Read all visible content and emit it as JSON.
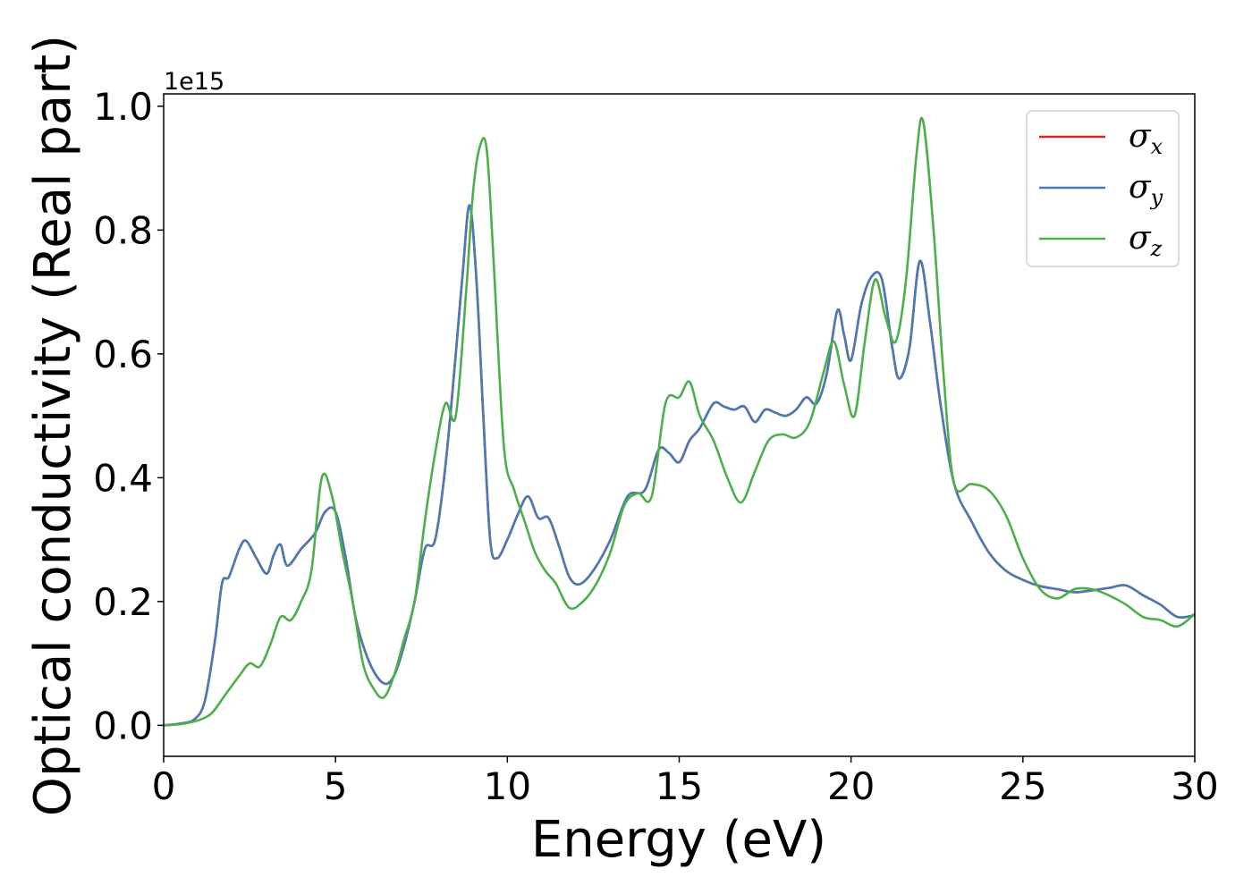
{
  "chart_data": {
    "type": "line",
    "title": "",
    "xlabel": "Energy (eV)",
    "ylabel": "Optical conductivity (Real part)",
    "y_offset_label": "1e15",
    "xlim": [
      0,
      30
    ],
    "ylim": [
      -0.05,
      1.02
    ],
    "xticks": [
      "0",
      "5",
      "10",
      "15",
      "20",
      "25",
      "30"
    ],
    "yticks": [
      "0.0",
      "0.2",
      "0.4",
      "0.6",
      "0.8",
      "1.0"
    ],
    "grid": false,
    "legend_position": "top-right",
    "series": [
      {
        "name": "σx",
        "symbol": "σ",
        "subscript": "x",
        "color": "#d62728",
        "x": [
          0,
          0.5,
          0.9,
          1.2,
          1.5,
          1.7,
          1.9,
          2.2,
          2.4,
          2.7,
          3.0,
          3.2,
          3.4,
          3.6,
          4.0,
          4.4,
          4.7,
          5.0,
          5.3,
          5.6,
          6.0,
          6.4,
          6.7,
          7.0,
          7.3,
          7.6,
          7.9,
          8.2,
          8.5,
          8.7,
          8.9,
          9.1,
          9.3,
          9.5,
          9.7,
          10.0,
          10.3,
          10.6,
          10.9,
          11.2,
          11.5,
          11.8,
          12.1,
          12.5,
          13.0,
          13.5,
          14.0,
          14.4,
          14.7,
          15.0,
          15.3,
          15.6,
          16.0,
          16.3,
          16.6,
          16.9,
          17.2,
          17.5,
          17.8,
          18.1,
          18.4,
          18.7,
          19.0,
          19.3,
          19.6,
          19.8,
          20.0,
          20.3,
          20.6,
          20.9,
          21.2,
          21.4,
          21.7,
          22.0,
          22.3,
          22.6,
          23.0,
          23.5,
          24.0,
          24.5,
          25.0,
          25.5,
          26.0,
          26.5,
          27.0,
          27.5,
          28.0,
          28.5,
          29.0,
          29.5,
          30.0
        ],
        "y": [
          0.0,
          0.003,
          0.01,
          0.04,
          0.14,
          0.23,
          0.24,
          0.285,
          0.298,
          0.27,
          0.245,
          0.275,
          0.292,
          0.258,
          0.285,
          0.31,
          0.345,
          0.345,
          0.27,
          0.17,
          0.1,
          0.068,
          0.08,
          0.13,
          0.2,
          0.285,
          0.3,
          0.42,
          0.6,
          0.73,
          0.84,
          0.72,
          0.5,
          0.3,
          0.27,
          0.3,
          0.34,
          0.37,
          0.335,
          0.335,
          0.29,
          0.24,
          0.228,
          0.25,
          0.3,
          0.37,
          0.38,
          0.445,
          0.44,
          0.425,
          0.46,
          0.48,
          0.52,
          0.515,
          0.51,
          0.515,
          0.49,
          0.51,
          0.505,
          0.5,
          0.51,
          0.53,
          0.52,
          0.57,
          0.67,
          0.63,
          0.59,
          0.68,
          0.725,
          0.72,
          0.61,
          0.56,
          0.61,
          0.75,
          0.65,
          0.52,
          0.39,
          0.33,
          0.28,
          0.25,
          0.235,
          0.225,
          0.22,
          0.215,
          0.218,
          0.222,
          0.226,
          0.21,
          0.195,
          0.175,
          0.178
        ]
      },
      {
        "name": "σy",
        "symbol": "σ",
        "subscript": "y",
        "color": "#4a7ab5",
        "x": [
          0,
          0.5,
          0.9,
          1.2,
          1.5,
          1.7,
          1.9,
          2.2,
          2.4,
          2.7,
          3.0,
          3.2,
          3.4,
          3.6,
          4.0,
          4.4,
          4.7,
          5.0,
          5.3,
          5.6,
          6.0,
          6.4,
          6.7,
          7.0,
          7.3,
          7.6,
          7.9,
          8.2,
          8.5,
          8.7,
          8.9,
          9.1,
          9.3,
          9.5,
          9.7,
          10.0,
          10.3,
          10.6,
          10.9,
          11.2,
          11.5,
          11.8,
          12.1,
          12.5,
          13.0,
          13.5,
          14.0,
          14.4,
          14.7,
          15.0,
          15.3,
          15.6,
          16.0,
          16.3,
          16.6,
          16.9,
          17.2,
          17.5,
          17.8,
          18.1,
          18.4,
          18.7,
          19.0,
          19.3,
          19.6,
          19.8,
          20.0,
          20.3,
          20.6,
          20.9,
          21.2,
          21.4,
          21.7,
          22.0,
          22.3,
          22.6,
          23.0,
          23.5,
          24.0,
          24.5,
          25.0,
          25.5,
          26.0,
          26.5,
          27.0,
          27.5,
          28.0,
          28.5,
          29.0,
          29.5,
          30.0
        ],
        "y": [
          0.0,
          0.003,
          0.01,
          0.04,
          0.14,
          0.23,
          0.24,
          0.285,
          0.298,
          0.27,
          0.245,
          0.275,
          0.292,
          0.258,
          0.285,
          0.31,
          0.345,
          0.345,
          0.27,
          0.17,
          0.1,
          0.068,
          0.08,
          0.13,
          0.2,
          0.285,
          0.3,
          0.42,
          0.6,
          0.73,
          0.84,
          0.72,
          0.5,
          0.3,
          0.27,
          0.3,
          0.34,
          0.37,
          0.335,
          0.335,
          0.29,
          0.24,
          0.228,
          0.25,
          0.3,
          0.37,
          0.38,
          0.445,
          0.44,
          0.425,
          0.46,
          0.48,
          0.52,
          0.515,
          0.51,
          0.515,
          0.49,
          0.51,
          0.505,
          0.5,
          0.51,
          0.53,
          0.52,
          0.57,
          0.67,
          0.63,
          0.59,
          0.68,
          0.725,
          0.72,
          0.61,
          0.56,
          0.61,
          0.75,
          0.65,
          0.52,
          0.39,
          0.33,
          0.28,
          0.25,
          0.235,
          0.225,
          0.22,
          0.215,
          0.218,
          0.222,
          0.226,
          0.21,
          0.195,
          0.175,
          0.178
        ]
      },
      {
        "name": "σz",
        "symbol": "σ",
        "subscript": "z",
        "color": "#4daf4a",
        "x": [
          0,
          0.5,
          1.0,
          1.4,
          1.8,
          2.2,
          2.5,
          2.8,
          3.1,
          3.4,
          3.7,
          4.0,
          4.3,
          4.6,
          4.9,
          5.2,
          5.5,
          5.8,
          6.1,
          6.4,
          6.7,
          7.0,
          7.3,
          7.6,
          7.9,
          8.2,
          8.5,
          8.8,
          9.0,
          9.2,
          9.4,
          9.6,
          9.9,
          10.2,
          10.5,
          10.8,
          11.1,
          11.4,
          11.8,
          12.2,
          12.6,
          13.0,
          13.4,
          13.8,
          14.2,
          14.6,
          15.0,
          15.3,
          15.6,
          16.0,
          16.4,
          16.8,
          17.2,
          17.6,
          18.0,
          18.4,
          18.8,
          19.2,
          19.5,
          19.8,
          20.1,
          20.4,
          20.7,
          21.0,
          21.3,
          21.6,
          21.9,
          22.1,
          22.4,
          22.7,
          23.0,
          23.5,
          24.0,
          24.5,
          25.0,
          25.5,
          26.0,
          26.5,
          27.0,
          27.5,
          28.0,
          28.5,
          29.0,
          29.5,
          30.0
        ],
        "y": [
          0.0,
          0.002,
          0.008,
          0.02,
          0.05,
          0.08,
          0.1,
          0.095,
          0.13,
          0.175,
          0.17,
          0.2,
          0.25,
          0.4,
          0.37,
          0.28,
          0.2,
          0.1,
          0.06,
          0.045,
          0.08,
          0.14,
          0.2,
          0.33,
          0.44,
          0.52,
          0.5,
          0.7,
          0.86,
          0.935,
          0.93,
          0.75,
          0.45,
          0.38,
          0.33,
          0.28,
          0.25,
          0.23,
          0.19,
          0.2,
          0.23,
          0.28,
          0.355,
          0.375,
          0.37,
          0.52,
          0.53,
          0.555,
          0.5,
          0.46,
          0.4,
          0.36,
          0.41,
          0.46,
          0.47,
          0.465,
          0.49,
          0.57,
          0.62,
          0.55,
          0.5,
          0.62,
          0.72,
          0.66,
          0.62,
          0.72,
          0.92,
          0.975,
          0.8,
          0.56,
          0.39,
          0.39,
          0.38,
          0.34,
          0.27,
          0.22,
          0.205,
          0.22,
          0.22,
          0.21,
          0.195,
          0.175,
          0.17,
          0.16,
          0.18
        ]
      }
    ]
  }
}
